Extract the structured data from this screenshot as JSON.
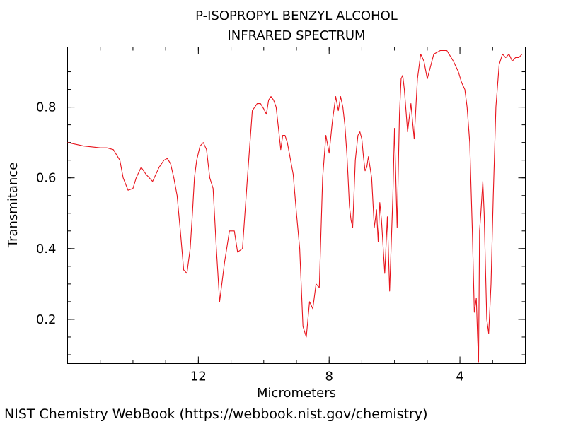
{
  "footer": {
    "credit": "NIST Chemistry WebBook (https://webbook.nist.gov/chemistry)"
  },
  "chart_data": {
    "type": "line",
    "title": "P-ISOPROPYL BENZYL ALCOHOL",
    "subtitle": "INFRARED SPECTRUM",
    "xlabel": "Micrometers",
    "ylabel": "Transmitance",
    "xlim": [
      16,
      2.0
    ],
    "ylim": [
      0.075,
      0.97
    ],
    "x_ticks": [
      12,
      8,
      4
    ],
    "y_ticks": [
      0.2,
      0.4,
      0.6,
      0.8
    ],
    "x_tick_labels": [
      "12",
      "8",
      "4"
    ],
    "y_tick_labels": [
      "0.2",
      "0.4",
      "0.6",
      "0.8"
    ],
    "x_minor_step": 1,
    "y_minor_step": 0.05,
    "grid": false,
    "line_color": "#e8141c",
    "series": [
      {
        "x": [
          16.0,
          15.5,
          15.0,
          14.8,
          14.6,
          14.4,
          14.3,
          14.15,
          14.0,
          13.9,
          13.75,
          13.6,
          13.4,
          13.2,
          13.05,
          12.95,
          12.85,
          12.75,
          12.65,
          12.55,
          12.45,
          12.35,
          12.25,
          12.18,
          12.12,
          12.05,
          11.95,
          11.85,
          11.75,
          11.65,
          11.55,
          11.45,
          11.35,
          11.2,
          11.05,
          10.9,
          10.8,
          10.65,
          10.5,
          10.35,
          10.2,
          10.1,
          10.0,
          9.92,
          9.85,
          9.78,
          9.7,
          9.62,
          9.55,
          9.48,
          9.42,
          9.35,
          9.28,
          9.2,
          9.1,
          9.0,
          8.9,
          8.8,
          8.7,
          8.6,
          8.5,
          8.4,
          8.3,
          8.2,
          8.1,
          8.0,
          7.9,
          7.8,
          7.72,
          7.65,
          7.58,
          7.52,
          7.46,
          7.42,
          7.38,
          7.33,
          7.28,
          7.2,
          7.12,
          7.06,
          7.0,
          6.95,
          6.9,
          6.85,
          6.8,
          6.75,
          6.7,
          6.62,
          6.55,
          6.5,
          6.45,
          6.4,
          6.3,
          6.22,
          6.15,
          6.05,
          6.0,
          5.92,
          5.85,
          5.8,
          5.75,
          5.7,
          5.6,
          5.5,
          5.4,
          5.3,
          5.2,
          5.1,
          5.0,
          4.8,
          4.6,
          4.4,
          4.2,
          4.05,
          3.95,
          3.85,
          3.78,
          3.7,
          3.62,
          3.56,
          3.5,
          3.46,
          3.43,
          3.4,
          3.36,
          3.3,
          3.26,
          3.22,
          3.18,
          3.12,
          3.05,
          2.98,
          2.9,
          2.8,
          2.7,
          2.6,
          2.5,
          2.4,
          2.3,
          2.2,
          2.1,
          2.0
        ],
        "y": [
          0.7,
          0.69,
          0.685,
          0.685,
          0.68,
          0.65,
          0.6,
          0.565,
          0.57,
          0.6,
          0.63,
          0.61,
          0.59,
          0.63,
          0.65,
          0.655,
          0.64,
          0.6,
          0.55,
          0.45,
          0.34,
          0.33,
          0.4,
          0.5,
          0.6,
          0.65,
          0.69,
          0.7,
          0.68,
          0.6,
          0.57,
          0.4,
          0.25,
          0.36,
          0.45,
          0.45,
          0.39,
          0.4,
          0.6,
          0.79,
          0.81,
          0.81,
          0.795,
          0.78,
          0.82,
          0.83,
          0.82,
          0.8,
          0.74,
          0.68,
          0.72,
          0.72,
          0.7,
          0.66,
          0.61,
          0.5,
          0.4,
          0.18,
          0.15,
          0.25,
          0.23,
          0.3,
          0.29,
          0.6,
          0.72,
          0.67,
          0.76,
          0.83,
          0.79,
          0.83,
          0.8,
          0.75,
          0.67,
          0.6,
          0.52,
          0.48,
          0.46,
          0.65,
          0.72,
          0.73,
          0.71,
          0.66,
          0.62,
          0.63,
          0.66,
          0.63,
          0.6,
          0.46,
          0.51,
          0.42,
          0.53,
          0.48,
          0.33,
          0.49,
          0.28,
          0.55,
          0.74,
          0.46,
          0.78,
          0.88,
          0.89,
          0.85,
          0.73,
          0.81,
          0.71,
          0.88,
          0.95,
          0.93,
          0.88,
          0.95,
          0.96,
          0.96,
          0.93,
          0.9,
          0.87,
          0.85,
          0.8,
          0.7,
          0.45,
          0.22,
          0.26,
          0.15,
          0.08,
          0.45,
          0.5,
          0.59,
          0.5,
          0.35,
          0.2,
          0.16,
          0.3,
          0.55,
          0.8,
          0.92,
          0.95,
          0.94,
          0.95,
          0.93,
          0.94,
          0.94,
          0.95,
          0.95
        ]
      }
    ]
  }
}
